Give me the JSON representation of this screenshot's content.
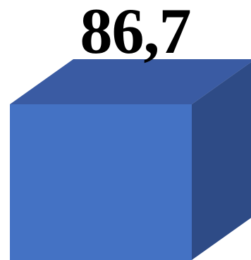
{
  "chart_data": {
    "type": "bar",
    "categories": [
      ""
    ],
    "values": [
      86.7
    ],
    "data_labels": [
      "86,7"
    ],
    "colors": {
      "front": "#4472c4",
      "top": "#3a5ba3",
      "side": "#2e4b86"
    }
  }
}
